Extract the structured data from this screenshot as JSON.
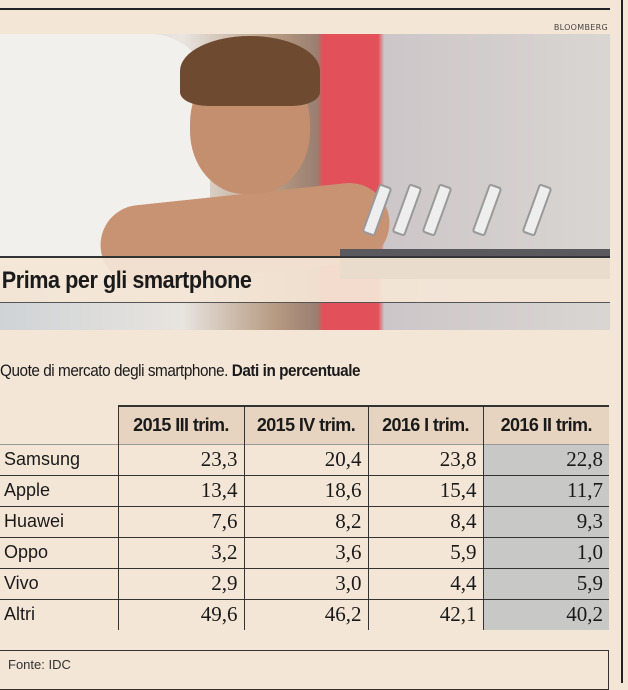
{
  "credit": "BLOOMBERG",
  "title": "Prima per gli smartphone",
  "subtitle": {
    "text": "Quote di mercato degli smartphone. ",
    "bold": "Dati in percentuale"
  },
  "table": {
    "headers": [
      "2015 III trim.",
      "2015 IV trim.",
      "2016 I trim.",
      "2016 II trim."
    ],
    "rows": [
      {
        "name": "Samsung",
        "values": [
          "23,3",
          "20,4",
          "23,8",
          "22,8"
        ]
      },
      {
        "name": "Apple",
        "values": [
          "13,4",
          "18,6",
          "15,4",
          "11,7"
        ]
      },
      {
        "name": "Huawei",
        "values": [
          "7,6",
          "8,2",
          "8,4",
          "9,3"
        ]
      },
      {
        "name": "Oppo",
        "values": [
          "3,2",
          "3,6",
          "5,9",
          "1,0"
        ]
      },
      {
        "name": "Vivo",
        "values": [
          "2,9",
          "3,0",
          "4,4",
          "5,9"
        ]
      },
      {
        "name": "Altri",
        "values": [
          "49,6",
          "46,2",
          "42,1",
          "40,2"
        ]
      }
    ]
  },
  "source": "Fonte: IDC",
  "colors": {
    "background": "#f4e6d6",
    "header": "#e6d4c0",
    "highlight": "#c8c8c6"
  }
}
